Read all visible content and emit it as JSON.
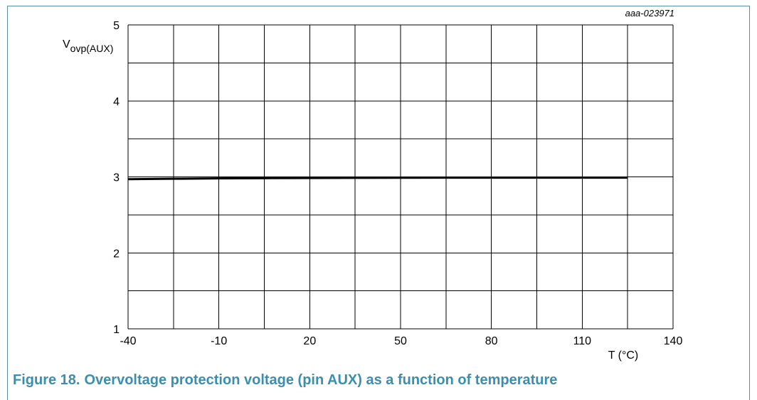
{
  "figure": {
    "number_label": "Figure 18.",
    "title": "Overvoltage protection voltage (pin AUX) as a function of temperature",
    "code": "aaa-023971"
  },
  "colors": {
    "frame": "#5b8fa8",
    "caption": "#3a8fb0",
    "grid": "#000000",
    "line": "#000000"
  },
  "chart_data": {
    "type": "line",
    "ylabel_main": "V",
    "ylabel_sub": "ovp(AUX)",
    "xlabel": "T (°C)",
    "xlim": [
      -40,
      140
    ],
    "ylim": [
      1,
      5
    ],
    "x_ticks": [
      -40,
      -10,
      20,
      50,
      80,
      110,
      140
    ],
    "y_ticks": [
      1,
      2,
      3,
      4,
      5
    ],
    "grid": true,
    "series": [
      {
        "x": [
          -40,
          -25,
          -10,
          5,
          20,
          35,
          50,
          65,
          80,
          95,
          110,
          125
        ],
        "y": [
          2.97,
          2.975,
          2.98,
          2.983,
          2.985,
          2.987,
          2.988,
          2.989,
          2.99,
          2.99,
          2.99,
          2.99
        ]
      }
    ]
  }
}
